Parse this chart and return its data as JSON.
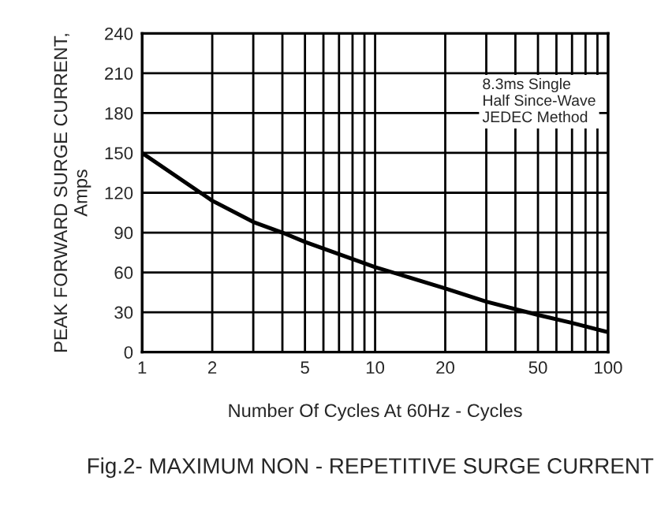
{
  "chart_data": {
    "type": "line",
    "title": "Fig.2- MAXIMUM NON - REPETITIVE SURGE CURRENT",
    "xlabel": "Number Of Cycles At 60Hz - Cycles",
    "ylabel": "PEAK FORWARD SURGE CURRENT,\nAmps",
    "annotations": [
      "8.3ms Single\nHalf Since-Wave\nJEDEC Method"
    ],
    "log": "x",
    "grid": true,
    "marker": "none",
    "line_style": "solid",
    "xlim": [
      1,
      100
    ],
    "ylim": [
      0,
      240
    ],
    "xticks": [
      1,
      2,
      {
        "value": 3,
        "label": null
      },
      {
        "value": 4,
        "label": null
      },
      5,
      {
        "value": 6,
        "label": null
      },
      {
        "value": 7,
        "label": null
      },
      {
        "value": 8,
        "label": null
      },
      {
        "value": 9,
        "label": null
      },
      10,
      20,
      {
        "value": 30,
        "label": null
      },
      {
        "value": 40,
        "label": null
      },
      50,
      {
        "value": 60,
        "label": null
      },
      {
        "value": 70,
        "label": null
      },
      {
        "value": 80,
        "label": null
      },
      {
        "value": 90,
        "label": null
      },
      100
    ],
    "yticks": [
      0,
      30,
      60,
      90,
      120,
      150,
      180,
      210,
      240
    ],
    "series": [
      {
        "color": "#000000",
        "x": [
          1,
          2,
          3,
          4,
          5,
          10,
          20,
          30,
          50,
          70,
          100
        ],
        "values": [
          150,
          114,
          98,
          90,
          83,
          64,
          48,
          38,
          28,
          22,
          15
        ]
      }
    ]
  }
}
